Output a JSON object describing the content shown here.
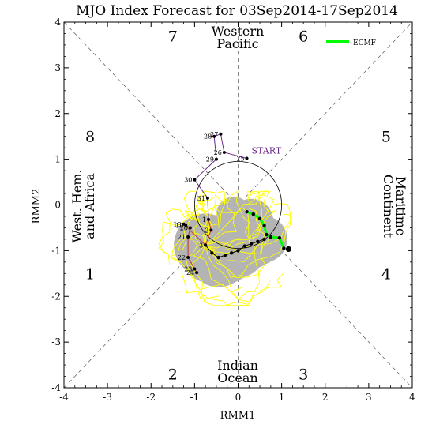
{
  "chart_data": {
    "type": "line",
    "title": "MJO Index Forecast for 03Sep2014-17Sep2014",
    "xlabel": "RMM1",
    "ylabel": "RMM2",
    "xlim": [
      -4,
      4
    ],
    "ylim": [
      -4,
      4
    ],
    "x_ticks": [
      "-4",
      "-3",
      "-2",
      "-1",
      "0",
      "1",
      "2",
      "3",
      "4"
    ],
    "y_ticks": [
      "-4",
      "-3",
      "-2",
      "-1",
      "0",
      "1",
      "2",
      "3",
      "4"
    ],
    "phases": [
      {
        "label": "1",
        "x": -3.4,
        "y": -1.5
      },
      {
        "label": "2",
        "x": -1.5,
        "y": -3.7
      },
      {
        "label": "3",
        "x": 1.5,
        "y": -3.7
      },
      {
        "label": "4",
        "x": 3.4,
        "y": -1.5
      },
      {
        "label": "5",
        "x": 3.4,
        "y": 1.5
      },
      {
        "label": "6",
        "x": 1.5,
        "y": 3.7
      },
      {
        "label": "7",
        "x": -1.5,
        "y": 3.7
      },
      {
        "label": "8",
        "x": -3.4,
        "y": 1.5
      }
    ],
    "regions": {
      "top": [
        "Western",
        "Pacific"
      ],
      "bottom": [
        "Indian",
        "Ocean"
      ],
      "right": [
        "Maritime",
        "Continent"
      ],
      "left": [
        "West. Hem.",
        "and Africa"
      ]
    },
    "start_label": "START",
    "observed": {
      "colors": [
        "#6a2a8a",
        "#c03030"
      ],
      "points": [
        {
          "day": "25",
          "x": 0.2,
          "y": 1.02
        },
        {
          "day": "26",
          "x": -0.32,
          "y": 1.15
        },
        {
          "day": "27",
          "x": -0.4,
          "y": 1.55
        },
        {
          "day": "28",
          "x": -0.55,
          "y": 1.5
        },
        {
          "day": "29",
          "x": -0.5,
          "y": 1.0
        },
        {
          "day": "30",
          "x": -1.0,
          "y": 0.55
        },
        {
          "day": "31",
          "x": -0.7,
          "y": 0.15
        },
        {
          "day": "1",
          "x": -0.68,
          "y": -0.32
        },
        {
          "day": "2",
          "x": -0.62,
          "y": -0.55
        },
        {
          "day": "3",
          "x": -0.75,
          "y": -0.88
        },
        {
          "day": "18",
          "x": -1.25,
          "y": -0.42
        },
        {
          "day": "19",
          "x": -1.2,
          "y": -0.45
        },
        {
          "day": "20",
          "x": -1.1,
          "y": -0.5
        },
        {
          "day": "21",
          "x": -1.15,
          "y": -0.7
        },
        {
          "day": "22",
          "x": -1.15,
          "y": -1.15
        },
        {
          "day": "23",
          "x": -1.0,
          "y": -1.4
        },
        {
          "day": "24",
          "x": -0.95,
          "y": -1.48
        }
      ]
    },
    "ensemble_mean": {
      "color": "#000000",
      "x": [
        -0.75,
        -0.6,
        -0.45,
        -0.3,
        -0.15,
        0.0,
        0.15,
        0.3,
        0.45,
        0.6
      ],
      "y": [
        -0.88,
        -1.05,
        -1.15,
        -1.1,
        -1.05,
        -1.0,
        -0.9,
        -0.85,
        -0.8,
        -0.75
      ]
    },
    "ecmf": {
      "name": "ECMF",
      "color": "#00ff00",
      "x": [
        0.2,
        0.35,
        0.5,
        0.6,
        0.65,
        0.75,
        0.95,
        1.05
      ],
      "y": [
        -0.15,
        -0.2,
        -0.3,
        -0.45,
        -0.65,
        -0.7,
        -0.72,
        -0.95
      ]
    },
    "legend": {
      "entries": [
        "ECMF"
      ],
      "placement": "top-right"
    },
    "ensemble_members_color": "#ffff00",
    "spread_color": "#b4b4b4"
  }
}
